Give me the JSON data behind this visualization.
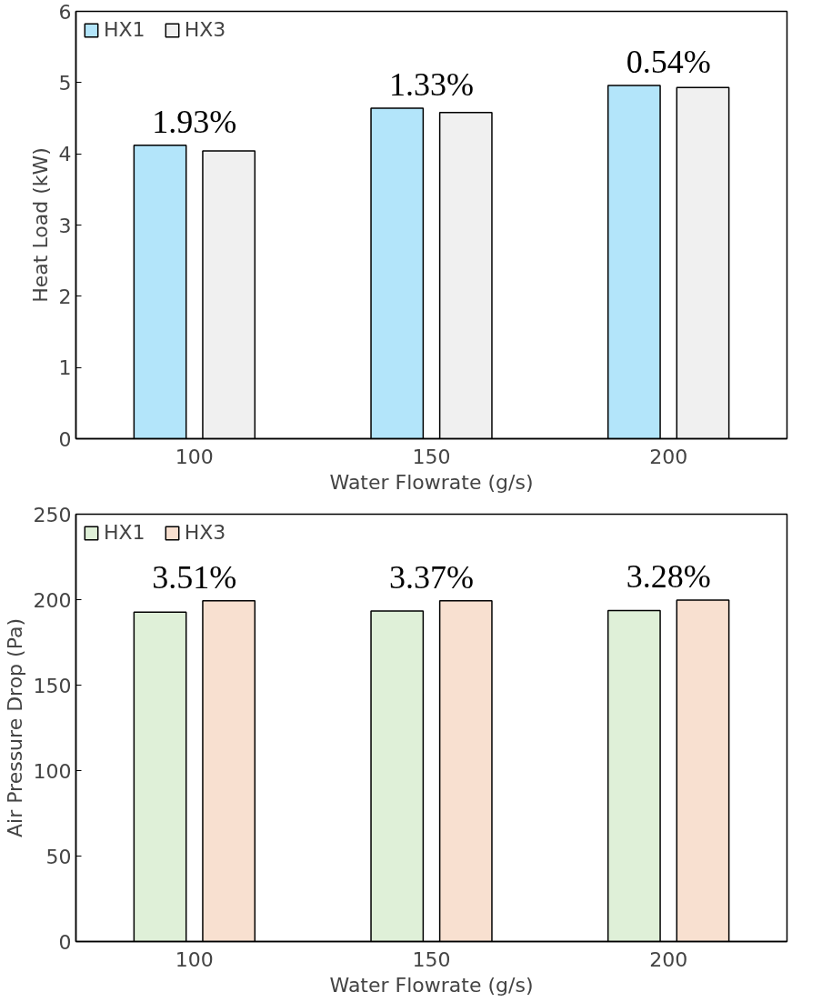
{
  "chart_data": [
    {
      "type": "bar",
      "xlabel": "Water Flowrate (g/s)",
      "ylabel": "Heat Load (kW)",
      "categories": [
        "100",
        "150",
        "200"
      ],
      "series": [
        {
          "name": "HX1",
          "color": "#b3e5fa",
          "values": [
            4.12,
            4.64,
            4.96
          ]
        },
        {
          "name": "HX3",
          "color": "#f0f0f0",
          "values": [
            4.04,
            4.58,
            4.93
          ]
        }
      ],
      "ylim": [
        0,
        6
      ],
      "yticks": [
        0,
        1,
        2,
        3,
        4,
        5,
        6
      ],
      "legend": "top left",
      "annotations": [
        "1.93%",
        "1.33%",
        "0.54%"
      ]
    },
    {
      "type": "bar",
      "xlabel": "Water Flowrate (g/s)",
      "ylabel": "Air Pressure Drop (Pa)",
      "categories": [
        "100",
        "150",
        "200"
      ],
      "series": [
        {
          "name": "HX1",
          "color": "#dff0d8",
          "values": [
            192.7,
            193.3,
            193.6
          ]
        },
        {
          "name": "HX3",
          "color": "#f8e0d0",
          "values": [
            199.4,
            199.4,
            199.7
          ]
        }
      ],
      "ylim": [
        0,
        250
      ],
      "yticks": [
        0,
        50,
        100,
        150,
        200,
        250
      ],
      "legend": "top left",
      "annotations": [
        "3.51%",
        "3.37%",
        "3.28%"
      ]
    }
  ]
}
